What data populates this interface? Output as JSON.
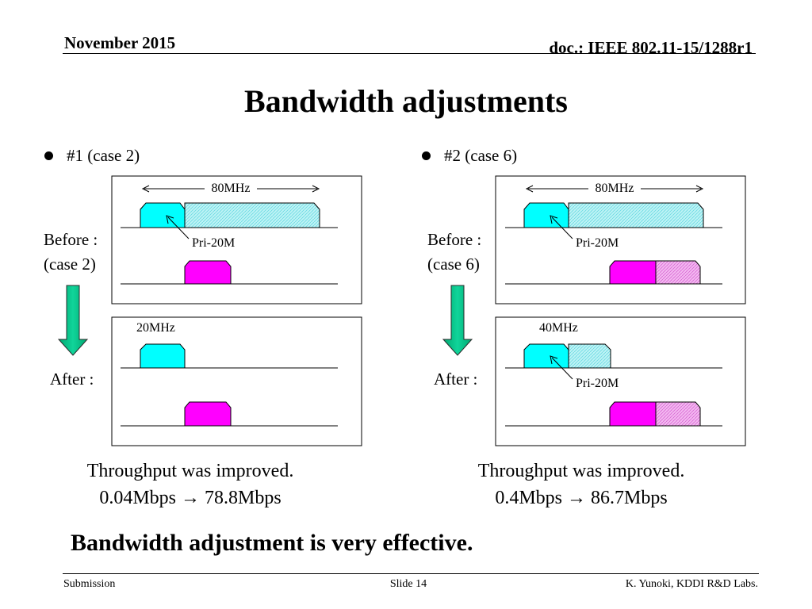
{
  "header": {
    "date": "November 2015",
    "doc_id": "doc.: IEEE 802.11-15/1288r1"
  },
  "title": "Bandwidth adjustments",
  "panels": {
    "left": {
      "bullet": "#1 (case 2)",
      "before_label_1": "Before :",
      "before_label_2": "(case 2)",
      "after_label": "After :",
      "top_box": {
        "width_label": "80MHz",
        "primary_label": "Pri-20M"
      },
      "bottom_box": {
        "width_label": "20MHz"
      },
      "result_line_1": "Throughput was improved.",
      "result_line_2": "0.04Mbps → 78.8Mbps"
    },
    "right": {
      "bullet": "#2 (case 6)",
      "before_label_1": "Before :",
      "before_label_2": "(case 6)",
      "after_label": "After :",
      "top_box": {
        "width_label": "80MHz",
        "primary_label": "Pri-20M"
      },
      "bottom_box": {
        "width_label": "40MHz",
        "primary_label": "Pri-20M"
      },
      "result_line_1": "Throughput was improved.",
      "result_line_2": "0.4Mbps → 86.7Mbps"
    }
  },
  "conclusion": "Bandwidth adjustment is very effective.",
  "footer": {
    "left": "Submission",
    "center": "Slide 14",
    "right": "K. Yunoki, KDDI R&D Labs."
  },
  "colors": {
    "primary_channel": "#00ffff",
    "secondary_hatch": "#bdf3f5",
    "interferer": "#ff00ff",
    "interferer_hatch": "#f3b8f0",
    "arrow": "#00c389"
  }
}
